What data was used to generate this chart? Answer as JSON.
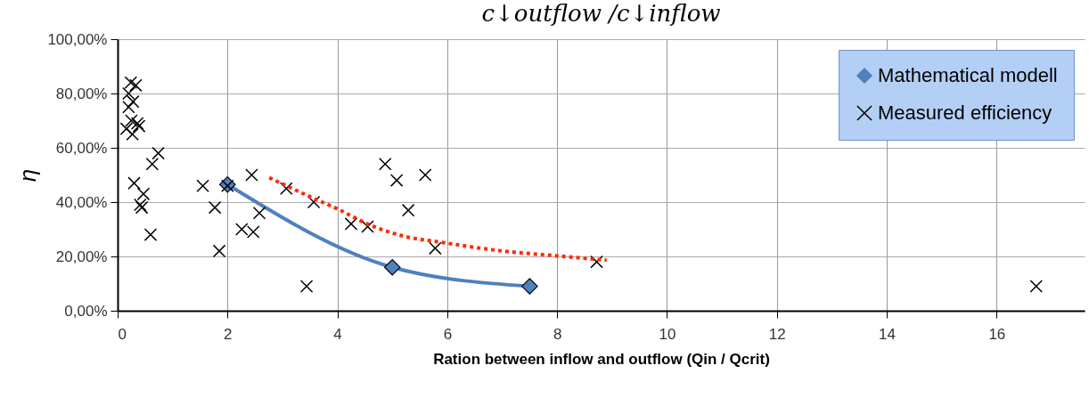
{
  "chart_data": {
    "type": "scatter",
    "annotations": [
      "c↓outflow /c↓inflow"
    ],
    "xlabel": "Ration between inflow and outflow (Qin / Qcrit)",
    "ylabel": "η",
    "xlim": [
      0,
      17.6
    ],
    "xticks": [
      0,
      2,
      4,
      6,
      8,
      10,
      12,
      14,
      16
    ],
    "ylim": [
      0,
      100
    ],
    "yticks": [
      {
        "value": 0,
        "label": "0,00%"
      },
      {
        "value": 20,
        "label": "20,00%"
      },
      {
        "value": 40,
        "label": "40,00%"
      },
      {
        "value": 60,
        "label": "60,00%"
      },
      {
        "value": 80,
        "label": "80,00%"
      },
      {
        "value": 100,
        "label": "100,00%"
      }
    ],
    "grid": true,
    "legend": "top right",
    "series": [
      {
        "name": "Mathematical modell",
        "type": "line",
        "marker": "diamond",
        "color": "#4f81bd",
        "x": [
          2,
          5,
          7.5
        ],
        "values": [
          46.5,
          16,
          9
        ]
      },
      {
        "name": "Measured efficiency",
        "marker": "cross",
        "color": "#000000",
        "x": [
          0.24,
          0.33,
          0.2,
          0.28,
          0.2,
          0.25,
          0.36,
          0.39,
          0.16,
          0.27,
          0.74,
          0.63,
          0.3,
          0.47,
          0.41,
          0.44,
          0.6,
          1.55,
          1.77,
          1.85,
          2.44,
          2.0,
          2.58,
          2.26,
          2.47,
          3.44,
          3.07,
          3.57,
          4.25,
          4.55,
          4.87,
          5.08,
          5.6,
          5.29,
          5.78,
          8.72,
          16.72
        ],
        "values": [
          84,
          83,
          80,
          77,
          75,
          70,
          69,
          68,
          67,
          65,
          58,
          54,
          47,
          43,
          39,
          38,
          28,
          46,
          38,
          22,
          50,
          46,
          36,
          30,
          29,
          9,
          45,
          40,
          32,
          31,
          54,
          48,
          50,
          37,
          23,
          18,
          9
        ]
      },
      {
        "type": "line",
        "marker": "none",
        "line_style": "dotted",
        "color": "#ff2a00",
        "x": [
          2.76,
          3.5,
          4,
          4.6,
          5.2,
          5.96,
          7,
          7.95,
          8.9
        ],
        "values": [
          49,
          42,
          37.5,
          31.5,
          27.5,
          25,
          22,
          20.3,
          18.6
        ]
      }
    ]
  }
}
